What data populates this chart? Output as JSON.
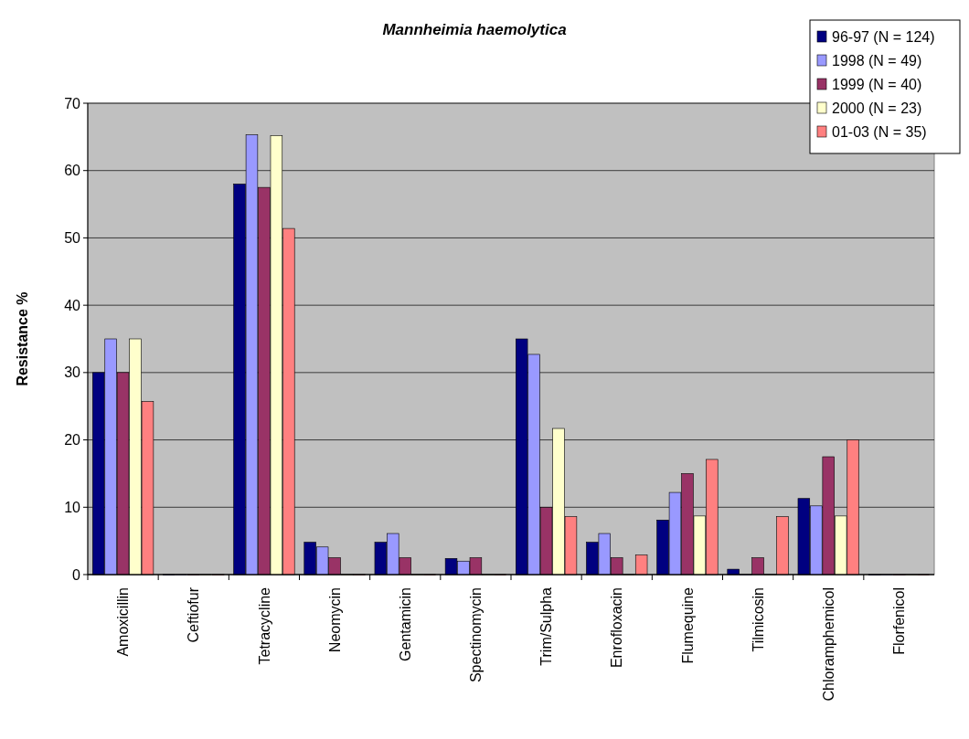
{
  "chart_data": {
    "type": "bar",
    "title": "Mannheimia haemolytica",
    "ylabel": "Resistance %",
    "categories": [
      "Amoxicillin",
      "Ceftiofur",
      "Tetracycline",
      "Neomycin",
      "Gentamicin",
      "Spectinomycin",
      "Trim/Sulpha",
      "Enrofloxacin",
      "Flumequine",
      "Tilmicosin",
      "Chloramphemicol",
      "Florfenicol"
    ],
    "series": [
      {
        "name": "96-97 (N = 124)",
        "color": "#000080",
        "values": [
          30,
          0,
          58,
          4.8,
          4.8,
          2.4,
          35,
          4.8,
          8.1,
          0.8,
          11.3,
          0
        ]
      },
      {
        "name": "1998 (N = 49)",
        "color": "#9999ff",
        "values": [
          35,
          0,
          65.3,
          4.1,
          6.1,
          2,
          32.7,
          6.1,
          12.2,
          0,
          10.2,
          0
        ]
      },
      {
        "name": "1999 (N = 40)",
        "color": "#993366",
        "values": [
          30,
          0,
          57.5,
          2.5,
          2.5,
          2.5,
          10,
          2.5,
          15,
          2.5,
          17.5,
          0
        ]
      },
      {
        "name": "2000 (N = 23)",
        "color": "#ffffcc",
        "values": [
          35,
          0,
          65.2,
          0,
          0,
          0,
          21.7,
          0,
          8.7,
          0,
          8.7,
          0
        ]
      },
      {
        "name": "01-03 (N = 35)",
        "color": "#ff8080",
        "values": [
          25.7,
          0,
          51.4,
          0,
          0,
          0,
          8.6,
          2.9,
          17.1,
          8.6,
          20,
          0
        ]
      }
    ],
    "ylim": [
      0,
      70
    ],
    "yticks": [
      0,
      10,
      20,
      30,
      40,
      50,
      60,
      70
    ],
    "grid": "y",
    "legend": "top right"
  }
}
